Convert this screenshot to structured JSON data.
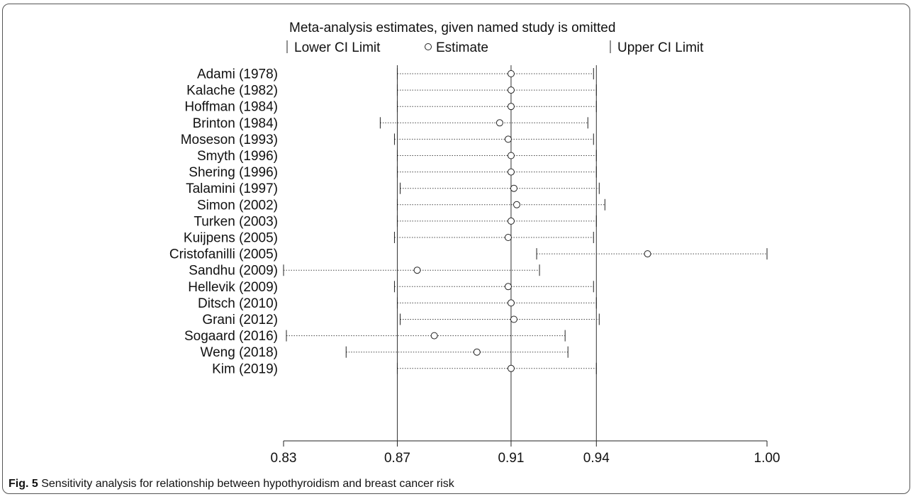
{
  "caption": {
    "label": "Fig. 5",
    "text": "Sensitivity analysis for relationship between hypothyroidism and breast cancer risk"
  },
  "chart_data": {
    "type": "forest",
    "title": "Meta-analysis estimates, given named study is omitted",
    "legend": {
      "lower": "Lower CI Limit",
      "estimate": "Estimate",
      "upper": "Upper CI Limit",
      "placement": "top"
    },
    "x_ticks": [
      "0.83",
      "0.87",
      "0.91",
      "0.94",
      "1.00"
    ],
    "x_tick_values": [
      0.83,
      0.87,
      0.91,
      0.94,
      1.0
    ],
    "xlim": [
      0.83,
      1.0
    ],
    "reference_lines": {
      "lower": 0.87,
      "estimate": 0.91,
      "upper": 0.94
    },
    "studies": [
      {
        "name": "Adami (1978)",
        "lower": 0.87,
        "estimate": 0.91,
        "upper": 0.939
      },
      {
        "name": "Kalache  (1982)",
        "lower": 0.87,
        "estimate": 0.91,
        "upper": 0.94
      },
      {
        "name": "Hoffman (1984)",
        "lower": 0.87,
        "estimate": 0.91,
        "upper": 0.94
      },
      {
        "name": "Brinton (1984)",
        "lower": 0.864,
        "estimate": 0.906,
        "upper": 0.937
      },
      {
        "name": "Moseson  (1993)",
        "lower": 0.869,
        "estimate": 0.909,
        "upper": 0.939
      },
      {
        "name": "Smyth (1996)",
        "lower": 0.87,
        "estimate": 0.91,
        "upper": 0.94
      },
      {
        "name": "Shering  (1996)",
        "lower": 0.87,
        "estimate": 0.91,
        "upper": 0.94
      },
      {
        "name": "Talamini (1997)",
        "lower": 0.871,
        "estimate": 0.911,
        "upper": 0.941
      },
      {
        "name": "Simon  (2002)",
        "lower": 0.87,
        "estimate": 0.912,
        "upper": 0.943
      },
      {
        "name": "Turken (2003)",
        "lower": 0.87,
        "estimate": 0.91,
        "upper": 0.94
      },
      {
        "name": "Kuijpens  (2005)",
        "lower": 0.869,
        "estimate": 0.909,
        "upper": 0.939
      },
      {
        "name": "Cristofanilli (2005)",
        "lower": 0.919,
        "estimate": 0.958,
        "upper": 1.0
      },
      {
        "name": "Sandhu (2009)",
        "lower": 0.83,
        "estimate": 0.877,
        "upper": 0.92
      },
      {
        "name": "Hellevik (2009)",
        "lower": 0.869,
        "estimate": 0.909,
        "upper": 0.939
      },
      {
        "name": "Ditsch  (2010)",
        "lower": 0.87,
        "estimate": 0.91,
        "upper": 0.94
      },
      {
        "name": "Grani (2012)",
        "lower": 0.871,
        "estimate": 0.911,
        "upper": 0.941
      },
      {
        "name": "Sogaard (2016)",
        "lower": 0.831,
        "estimate": 0.883,
        "upper": 0.929
      },
      {
        "name": "Weng (2018)",
        "lower": 0.852,
        "estimate": 0.898,
        "upper": 0.93
      },
      {
        "name": "Kim (2019)",
        "lower": 0.87,
        "estimate": 0.91,
        "upper": 0.94
      }
    ]
  }
}
